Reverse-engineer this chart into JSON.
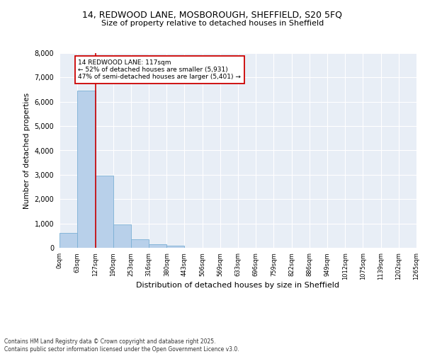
{
  "title_line1": "14, REDWOOD LANE, MOSBOROUGH, SHEFFIELD, S20 5FQ",
  "title_line2": "Size of property relative to detached houses in Sheffield",
  "xlabel": "Distribution of detached houses by size in Sheffield",
  "ylabel": "Number of detached properties",
  "bar_color": "#b8d0ea",
  "bar_edge_color": "#7aafd4",
  "background_color": "#e8eef6",
  "grid_color": "#ffffff",
  "annotation_line_color": "#cc0000",
  "annotation_box_color": "#cc0000",
  "annotation_text": "14 REDWOOD LANE: 117sqm\n← 52% of detached houses are smaller (5,931)\n47% of semi-detached houses are larger (5,401) →",
  "property_size_bin": 1,
  "property_line_x": 127,
  "footer_line1": "Contains HM Land Registry data © Crown copyright and database right 2025.",
  "footer_line2": "Contains public sector information licensed under the Open Government Licence v3.0.",
  "categories": [
    "0sqm",
    "63sqm",
    "127sqm",
    "190sqm",
    "253sqm",
    "316sqm",
    "380sqm",
    "443sqm",
    "506sqm",
    "569sqm",
    "633sqm",
    "696sqm",
    "759sqm",
    "822sqm",
    "886sqm",
    "949sqm",
    "1012sqm",
    "1075sqm",
    "1139sqm",
    "1202sqm",
    "1265sqm"
  ],
  "bin_edges": [
    0,
    63,
    127,
    190,
    253,
    316,
    380,
    443,
    506,
    569,
    633,
    696,
    759,
    822,
    886,
    949,
    1012,
    1075,
    1139,
    1202,
    1265
  ],
  "values": [
    600,
    6450,
    2980,
    960,
    360,
    155,
    75,
    0,
    0,
    0,
    0,
    0,
    0,
    0,
    0,
    0,
    0,
    0,
    0,
    0
  ],
  "ylim": [
    0,
    8000
  ],
  "yticks": [
    0,
    1000,
    2000,
    3000,
    4000,
    5000,
    6000,
    7000,
    8000
  ]
}
